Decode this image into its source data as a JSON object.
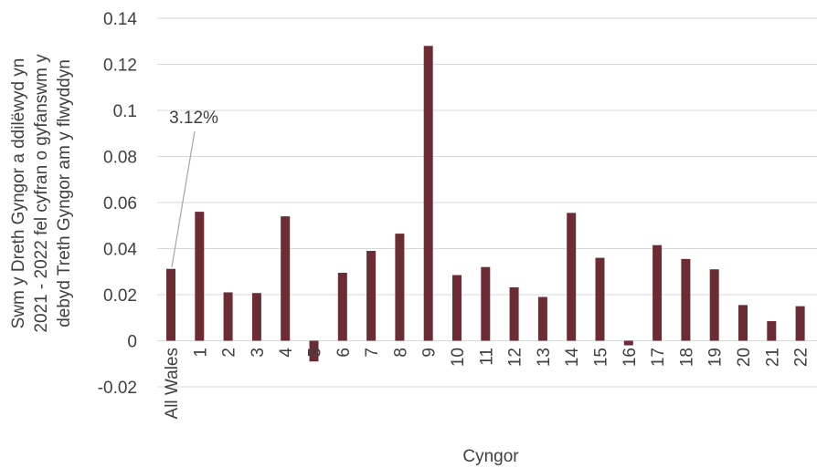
{
  "chart_data": {
    "type": "bar",
    "categories": [
      "All Wales",
      "1",
      "2",
      "3",
      "4",
      "5",
      "6",
      "7",
      "8",
      "9",
      "10",
      "11",
      "12",
      "13",
      "14",
      "15",
      "16",
      "17",
      "18",
      "19",
      "20",
      "21",
      "22"
    ],
    "values": [
      0.0312,
      0.056,
      0.021,
      0.0207,
      0.054,
      -0.009,
      0.0295,
      0.039,
      0.0465,
      0.128,
      0.0285,
      0.032,
      0.0232,
      0.019,
      0.0555,
      0.036,
      -0.002,
      0.0415,
      0.0355,
      0.031,
      0.0155,
      0.0085,
      0.015
    ],
    "xlabel": "Cyngor",
    "ylabel_lines": [
      "Swm y Dreth Gyngor a ddilëwyd yn",
      "2021 - 2022 fel cyfran o gyfanswm y",
      "debyd Treth Gyngor am y flwyddyn"
    ],
    "ylim": [
      -0.02,
      0.14
    ],
    "yticks": [
      "-0.02",
      "0",
      "0.02",
      "0.04",
      "0.06",
      "0.08",
      "0.1",
      "0.12",
      "0.14"
    ],
    "grid": true,
    "bar_color": "#6b2d33",
    "annotation": {
      "text": "3.12%",
      "category": "All Wales"
    }
  }
}
